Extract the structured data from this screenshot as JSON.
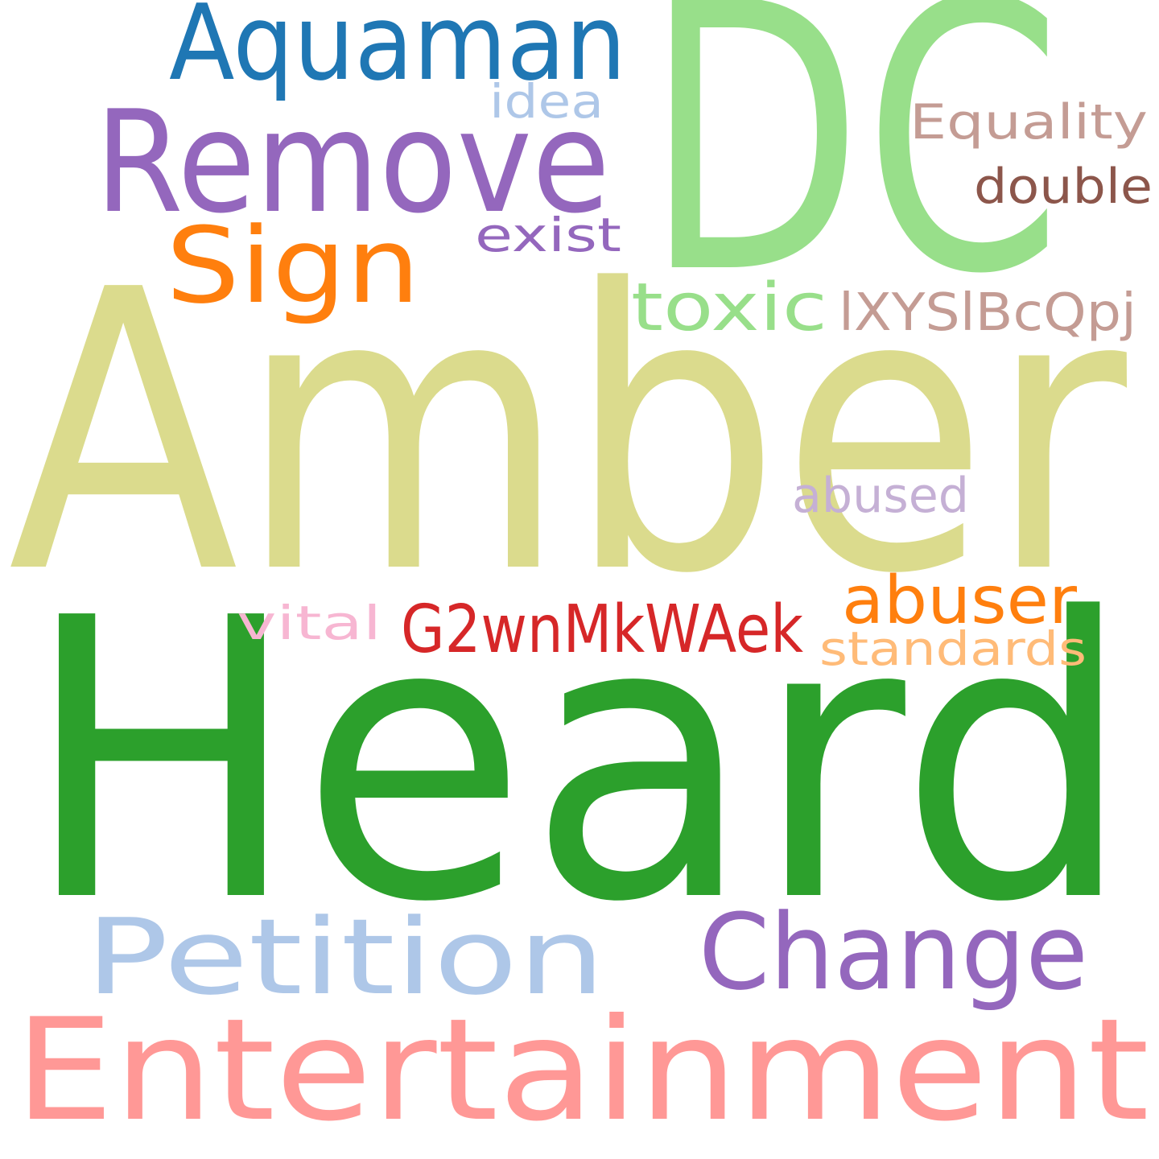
{
  "words": [
    {
      "id": "amber",
      "text": "Amber",
      "color": "#dbdb8d"
    },
    {
      "id": "heard",
      "text": "Heard",
      "color": "#2ca02c"
    },
    {
      "id": "dc",
      "text": "DC",
      "color": "#98df8a"
    },
    {
      "id": "entertainment",
      "text": "Entertainment",
      "color": "#ff9896"
    },
    {
      "id": "remove",
      "text": "Remove",
      "color": "#9467bd"
    },
    {
      "id": "aquaman",
      "text": "Aquaman",
      "color": "#1f77b4"
    },
    {
      "id": "petition",
      "text": "Petition",
      "color": "#aec7e8"
    },
    {
      "id": "change",
      "text": "Change",
      "color": "#9467bd"
    },
    {
      "id": "sign",
      "text": "Sign",
      "color": "#ff7f0e"
    },
    {
      "id": "toxic",
      "text": "toxic",
      "color": "#98df8a"
    },
    {
      "id": "lxyslbcqpj",
      "text": "lXYSlBcQpj",
      "color": "#c49c94"
    },
    {
      "id": "g2wnmkwaek",
      "text": "G2wnMkWAek",
      "color": "#d62728"
    },
    {
      "id": "abuser",
      "text": "abuser",
      "color": "#ff7f0e"
    },
    {
      "id": "equality",
      "text": "Equality",
      "color": "#c49c94"
    },
    {
      "id": "double",
      "text": "double",
      "color": "#8c564b"
    },
    {
      "id": "exist",
      "text": "exist",
      "color": "#9467bd"
    },
    {
      "id": "idea",
      "text": "idea",
      "color": "#aec7e8"
    },
    {
      "id": "abused",
      "text": "abused",
      "color": "#c5b0d5"
    },
    {
      "id": "vital",
      "text": "vital",
      "color": "#f7b6d2"
    },
    {
      "id": "standards",
      "text": "standards",
      "color": "#ffbb78"
    }
  ]
}
